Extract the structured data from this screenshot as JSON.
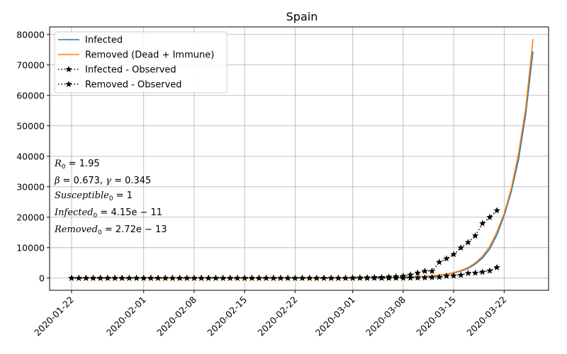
{
  "chart_data": {
    "type": "line",
    "title": "Spain",
    "xlabel": "",
    "ylabel": "",
    "x_start": "2020-01-22",
    "x_end": "2020-03-26",
    "x_ticks": [
      "2020-01-22",
      "2020-02-01",
      "2020-02-08",
      "2020-02-15",
      "2020-02-22",
      "2020-03-01",
      "2020-03-08",
      "2020-03-15",
      "2020-03-22"
    ],
    "y_ticks": [
      0,
      10000,
      20000,
      30000,
      40000,
      50000,
      60000,
      70000,
      80000
    ],
    "ylim": [
      -4000,
      82500
    ],
    "grid": true,
    "legend_position": "top-left",
    "series": [
      {
        "name": "Infected",
        "color": "#1f77b4",
        "style": "solid",
        "x": [
          "2020-03-01",
          "2020-03-05",
          "2020-03-08",
          "2020-03-10",
          "2020-03-12",
          "2020-03-14",
          "2020-03-15",
          "2020-03-16",
          "2020-03-17",
          "2020-03-18",
          "2020-03-19",
          "2020-03-20",
          "2020-03-21",
          "2020-03-22",
          "2020-03-23",
          "2020-03-24",
          "2020-03-25",
          "2020-03-26"
        ],
        "y": [
          0,
          100,
          250,
          450,
          700,
          1200,
          1700,
          2300,
          3200,
          4600,
          6600,
          9600,
          14200,
          20500,
          28500,
          39000,
          54000,
          74500
        ]
      },
      {
        "name": "Removed (Dead + Immune)",
        "color": "#ff7f0e",
        "style": "solid",
        "x": [
          "2020-03-01",
          "2020-03-05",
          "2020-03-08",
          "2020-03-10",
          "2020-03-12",
          "2020-03-14",
          "2020-03-15",
          "2020-03-16",
          "2020-03-17",
          "2020-03-18",
          "2020-03-19",
          "2020-03-20",
          "2020-03-21",
          "2020-03-22",
          "2020-03-23",
          "2020-03-24",
          "2020-03-25",
          "2020-03-26"
        ],
        "y": [
          0,
          100,
          250,
          450,
          750,
          1300,
          1800,
          2500,
          3500,
          5000,
          7200,
          10400,
          15200,
          21200,
          29500,
          41000,
          56000,
          78500
        ]
      },
      {
        "name": "Infected - Observed",
        "color": "#000000",
        "style": "dotted-star",
        "x": [
          "2020-03-01",
          "2020-03-02",
          "2020-03-03",
          "2020-03-04",
          "2020-03-05",
          "2020-03-06",
          "2020-03-07",
          "2020-03-08",
          "2020-03-09",
          "2020-03-10",
          "2020-03-11",
          "2020-03-12",
          "2020-03-13",
          "2020-03-14",
          "2020-03-15",
          "2020-03-16",
          "2020-03-17",
          "2020-03-18",
          "2020-03-19",
          "2020-03-20",
          "2020-03-21"
        ],
        "y": [
          84,
          120,
          165,
          222,
          259,
          400,
          500,
          673,
          1073,
          1695,
          2277,
          2277,
          5232,
          6391,
          7798,
          9942,
          11748,
          13910,
          17963,
          19980,
          22200
        ]
      },
      {
        "name": "Removed - Observed",
        "color": "#000000",
        "style": "dotted-star",
        "x": [
          "2020-03-01",
          "2020-03-02",
          "2020-03-03",
          "2020-03-04",
          "2020-03-05",
          "2020-03-06",
          "2020-03-07",
          "2020-03-08",
          "2020-03-09",
          "2020-03-10",
          "2020-03-11",
          "2020-03-12",
          "2020-03-13",
          "2020-03-14",
          "2020-03-15",
          "2020-03-16",
          "2020-03-17",
          "2020-03-18",
          "2020-03-19",
          "2020-03-20",
          "2020-03-21"
        ],
        "y": [
          2,
          2,
          2,
          3,
          3,
          5,
          10,
          30,
          60,
          90,
          150,
          230,
          320,
          700,
          800,
          1000,
          1600,
          1700,
          2000,
          2400,
          3500
        ]
      }
    ]
  },
  "annotation": {
    "r0_label": "R",
    "r0_sub": "0",
    "r0_value": " = 1.95",
    "beta_label": "β",
    "beta_value": " = 0.673, ",
    "gamma_label": "γ",
    "gamma_value": " = 0.345",
    "susceptible_label": "Susceptible",
    "susceptible_sub": "0",
    "susceptible_value": " = 1",
    "infected_label": "Infected",
    "infected_sub": "0",
    "infected_value": " = 4.15e − 11",
    "removed_label": "Removed",
    "removed_sub": "0",
    "removed_value": " = 2.72e − 13"
  }
}
